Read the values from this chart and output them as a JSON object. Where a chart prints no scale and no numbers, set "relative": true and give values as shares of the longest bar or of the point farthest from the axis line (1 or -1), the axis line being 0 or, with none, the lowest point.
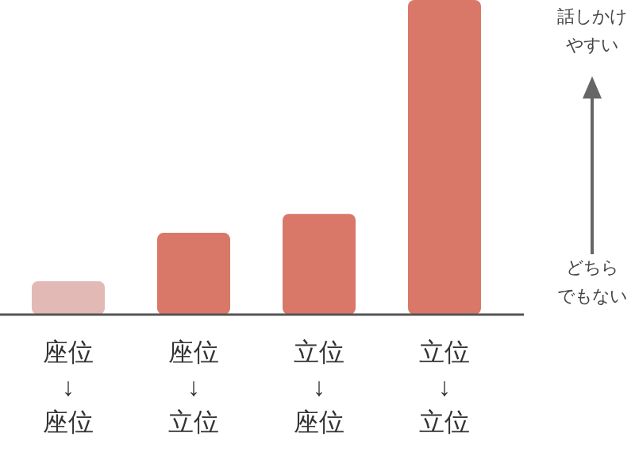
{
  "chart_data": {
    "type": "bar",
    "relative": true,
    "categories": [
      "座位\n↓\n座位",
      "座位\n↓\n立位",
      "立位\n↓\n座位",
      "立位\n↓\n立位"
    ],
    "values": [
      0.106,
      0.26,
      0.32,
      1
    ],
    "colors": [
      "#e3b9b5",
      "#d97868",
      "#d97868",
      "#d97868"
    ],
    "annotations": [
      "話しかけ",
      "やすい",
      "どちら",
      "でもない"
    ]
  }
}
